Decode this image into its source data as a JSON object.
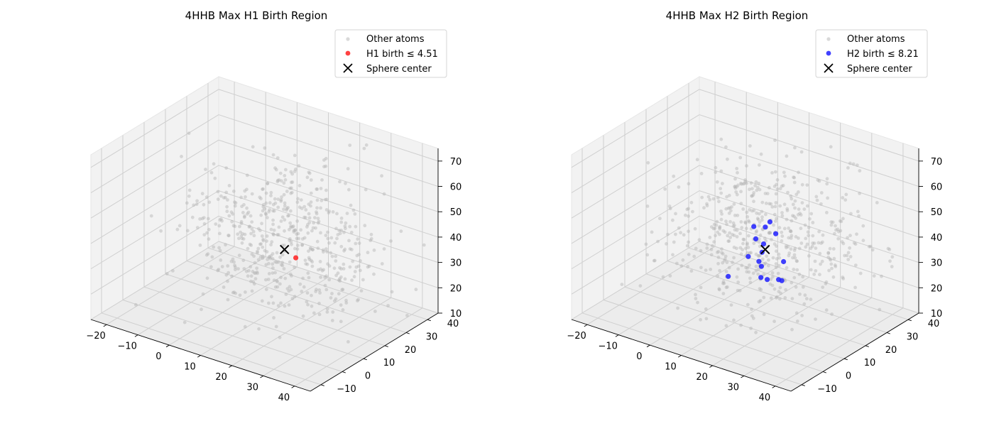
{
  "chart_data": [
    {
      "type": "scatter",
      "dimensions": 3,
      "title": "4HHB Max H1 Birth Region",
      "xlim": [
        -25,
        45
      ],
      "ylim": [
        -15,
        45
      ],
      "zlim": [
        10,
        75
      ],
      "xticks": [
        -20,
        -10,
        0,
        10,
        20,
        30,
        40
      ],
      "yticks": [
        -10,
        0,
        10,
        20,
        30,
        40
      ],
      "zticks": [
        10,
        20,
        30,
        40,
        50,
        60,
        70
      ],
      "xtick_labels": [
        "−20",
        "−10",
        "0",
        "10",
        "20",
        "30",
        "40"
      ],
      "ytick_labels": [
        "−10",
        "0",
        "10",
        "20",
        "30",
        "40"
      ],
      "ztick_labels": [
        "10",
        "20",
        "30",
        "40",
        "50",
        "60",
        "70"
      ],
      "grid": true,
      "legend_position": "top-right",
      "series": [
        {
          "name": "Other atoms",
          "kind": "background",
          "count": 570,
          "color": "#b3b3b3",
          "center": [
            12,
            22,
            38
          ],
          "spread": [
            13,
            13,
            13
          ]
        },
        {
          "name": "H1 birth ≤ 4.51",
          "kind": "highlight",
          "color": "#ff2020",
          "points": [
            [
              16.6,
              20.0,
              33.2
            ]
          ]
        },
        {
          "name": "Sphere center",
          "kind": "marker",
          "color": "#000000",
          "points": [
            [
              13.0,
              20.0,
              35.0
            ]
          ]
        }
      ]
    },
    {
      "type": "scatter",
      "dimensions": 3,
      "title": "4HHB Max H2 Birth Region",
      "xlim": [
        -25,
        45
      ],
      "ylim": [
        -15,
        45
      ],
      "zlim": [
        10,
        75
      ],
      "xticks": [
        -20,
        -10,
        0,
        10,
        20,
        30,
        40
      ],
      "yticks": [
        -10,
        0,
        10,
        20,
        30,
        40
      ],
      "zticks": [
        10,
        20,
        30,
        40,
        50,
        60,
        70
      ],
      "xtick_labels": [
        "−20",
        "−10",
        "0",
        "10",
        "20",
        "30",
        "40"
      ],
      "ytick_labels": [
        "−10",
        "0",
        "10",
        "20",
        "30",
        "40"
      ],
      "ztick_labels": [
        "10",
        "20",
        "30",
        "40",
        "50",
        "60",
        "70"
      ],
      "grid": true,
      "legend_position": "top-right",
      "series": [
        {
          "name": "Other atoms",
          "kind": "background",
          "count": 570,
          "color": "#b3b3b3",
          "center": [
            12,
            22,
            38
          ],
          "spread": [
            13,
            13,
            13
          ]
        },
        {
          "name": "H2 birth ≤ 8.21",
          "kind": "highlight",
          "color": "#2020ff",
          "points": [
            [
              8.0,
              22.0,
              41.0
            ],
            [
              11.0,
              23.0,
              41.5
            ],
            [
              14.5,
              20.0,
              46.5
            ],
            [
              15.0,
              22.0,
              41.0
            ],
            [
              10.0,
              20.0,
              38.0
            ],
            [
              12.5,
              20.0,
              37.0
            ],
            [
              11.0,
              15.0,
              34.0
            ],
            [
              14.5,
              16.0,
              31.0
            ],
            [
              17.5,
              22.0,
              31.0
            ],
            [
              20.0,
              16.0,
              28.0
            ],
            [
              21.0,
              16.0,
              28.0
            ],
            [
              11.0,
              20.0,
              29.5
            ],
            [
              13.0,
              18.0,
              25.0
            ],
            [
              15.0,
              18.0,
              25.0
            ],
            [
              8.0,
              10.0,
              27.5
            ],
            [
              12.0,
              20.0,
              33.5
            ]
          ]
        },
        {
          "name": "Sphere center",
          "kind": "marker",
          "color": "#000000",
          "points": [
            [
              13.0,
              20.0,
              35.0
            ]
          ]
        }
      ]
    }
  ]
}
